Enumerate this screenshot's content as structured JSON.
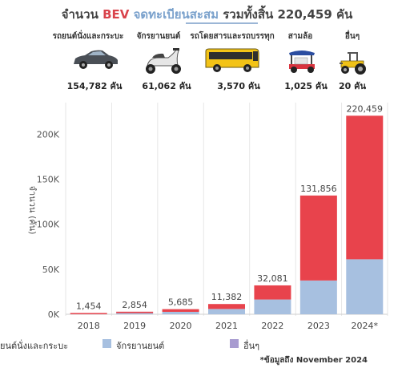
{
  "title": {
    "part1": "จำนวน ",
    "part2": "BEV",
    "part3": " จดทะเบียนสะสม",
    "part4": " รวมทั้งสิ้น 220,459 คัน"
  },
  "vehicles": [
    {
      "label": "รถยนต์นั่งและกระบะ",
      "count": "154,782 คัน",
      "icon": "car-icon"
    },
    {
      "label": "จักรยานยนต์",
      "count": "61,062 คัน",
      "icon": "scooter-icon"
    },
    {
      "label": "รถโดยสารและรถบรรทุก",
      "count": "3,570 คัน",
      "icon": "bus-icon"
    },
    {
      "label": "สามล้อ",
      "count": "1,025 คัน",
      "icon": "tuktuk-icon"
    },
    {
      "label": "อื่นๆ",
      "count": "20 คัน",
      "icon": "tractor-icon"
    }
  ],
  "chart_data": {
    "type": "bar",
    "stacked": true,
    "categories": [
      "2018",
      "2019",
      "2020",
      "2021",
      "2022",
      "2023",
      "2024*"
    ],
    "series": [
      {
        "name": "จักรยานยนต์",
        "color": "#a7c0e0",
        "values": [
          100,
          1300,
          2700,
          5900,
          16400,
          37500,
          61062
        ]
      },
      {
        "name": "รถยนต์นั่งและกระบะ",
        "color": "#e8434c",
        "values": [
          1354,
          1554,
          2985,
          5482,
          15681,
          94356,
          159397
        ]
      }
    ],
    "totals": [
      "1,454",
      "2,854",
      "5,685",
      "11,382",
      "32,081",
      "131,856",
      "220,459"
    ],
    "ylabel": "จำนวน (คัน)",
    "yticks": [
      "0K",
      "50K",
      "100K",
      "150K",
      "200K"
    ],
    "ylim": [
      0,
      235000
    ],
    "grid": "vertical"
  },
  "legend": [
    {
      "label": "ยนต์นั่งและกระบะ",
      "color": "#e8434c"
    },
    {
      "label": "จักรยานยนต์",
      "color": "#a7c0e0"
    },
    {
      "label": "อื่นๆ",
      "color": "#a89bd0"
    }
  ],
  "note": "*ข้อมูลถึง November 2024"
}
